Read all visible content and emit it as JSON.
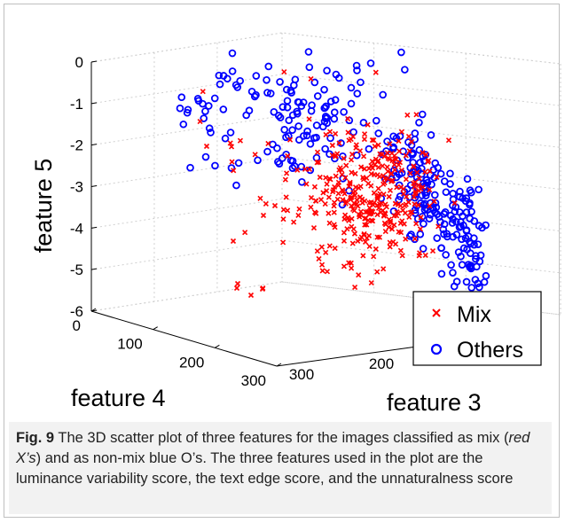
{
  "chart_data": {
    "type": "scatter",
    "projection": "3d",
    "xlabel": "feature 4",
    "ylabel": "feature 3",
    "zlabel": "feature 5",
    "x_ticks": [
      "0",
      "100",
      "200",
      "300"
    ],
    "y_ticks": [
      "200",
      "300"
    ],
    "z_ticks": [
      "0",
      "-1",
      "-2",
      "-3",
      "-4",
      "-5",
      "-6"
    ],
    "zlim": [
      -6,
      0
    ],
    "grid": true,
    "legend_position": "bottom-right",
    "series": [
      {
        "name": "Mix",
        "marker": "x",
        "color": "#ff0000"
      },
      {
        "name": "Others",
        "marker": "o",
        "color": "#0000ff"
      }
    ]
  },
  "caption": {
    "label": "Fig. 9",
    "text_part1": "The 3D scatter plot of three features for the images classified as mix (",
    "text_italic": "red X’s",
    "text_part2": ") and as non-mix blue O’s. The three features used in the plot are the luminance variability score, the text edge score, and the unnaturalness score"
  }
}
